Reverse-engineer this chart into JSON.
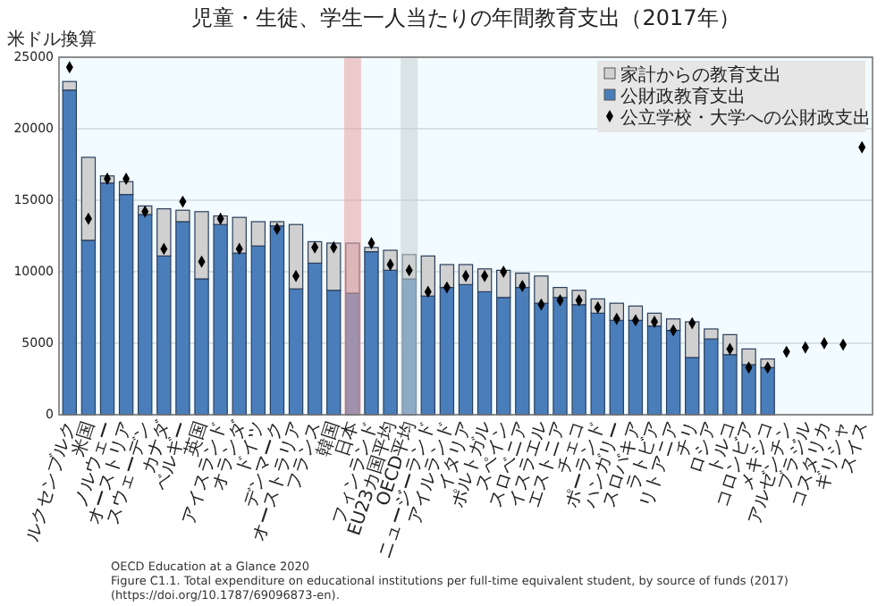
{
  "chart_data": {
    "type": "bar",
    "title": "児童・生徒、学生一人当たりの年間教育支出（2017年）",
    "ylabel": "米ドル換算",
    "categories": [
      "ルクセンブルク",
      "米国",
      "ノルウェー",
      "オーストリア",
      "スウェーデン",
      "カナダ",
      "ベルギー",
      "英国",
      "アイスランド",
      "オランダ",
      "ドイツ",
      "デンマーク",
      "オーストラリア",
      "フランス",
      "韓国",
      "日本",
      "フィンランド",
      "EU23カ国平均",
      "OECD平均",
      "ニュージーランド",
      "アイルランド",
      "イタリア",
      "ポルトガル",
      "スペイン",
      "スロベニア",
      "イスラエル",
      "エストニア",
      "チェコ",
      "ポーランド",
      "ハンガリー",
      "スロバキア",
      "ラトビア",
      "リトアニア",
      "チリ",
      "ロシア",
      "トルコ",
      "コロンビア",
      "メキシコ",
      "アルゼンチン",
      "ブラジル",
      "コスタリカ",
      "ギリシャ",
      "スイス"
    ],
    "stacked": true,
    "series": [
      {
        "name": "公財政教育支出",
        "color": "#4a7ebb",
        "values": [
          22700,
          12200,
          16200,
          15400,
          14000,
          11100,
          13500,
          9500,
          13300,
          11300,
          11800,
          13200,
          8800,
          10600,
          8700,
          8500,
          11400,
          10100,
          9500,
          8300,
          8900,
          9100,
          8600,
          8200,
          8900,
          7800,
          8200,
          7700,
          7100,
          6600,
          6600,
          6200,
          5900,
          4000,
          5300,
          4200,
          3500,
          3300,
          null,
          null,
          null,
          null,
          null
        ]
      },
      {
        "name": "家計からの教育支出",
        "color": "#d0d0d0",
        "values": [
          600,
          5800,
          500,
          900,
          600,
          3300,
          800,
          4700,
          600,
          2500,
          1700,
          300,
          4500,
          1500,
          3300,
          3500,
          300,
          1400,
          1700,
          2800,
          1600,
          1400,
          1600,
          1900,
          1000,
          1900,
          700,
          1000,
          1000,
          1200,
          1000,
          900,
          800,
          2500,
          700,
          1400,
          1100,
          600,
          null,
          null,
          null,
          null,
          null
        ]
      },
      {
        "name": "公立学校・大学への公財政支出",
        "type": "scatter",
        "color": "#000000",
        "marker": "diamond",
        "x": [
          "ルクセンブルク",
          "米国",
          "ノルウェー",
          "オーストリア",
          "スウェーデン",
          "カナダ",
          "ベルギー",
          "英国",
          "アイスランド",
          "オランダ",
          "ドイツ",
          "デンマーク",
          "オーストラリア",
          "フランス",
          "韓国",
          "日本",
          "フィンランド",
          "EU23カ国平均",
          "OECD平均",
          "ニュージーランド",
          "アイルランド",
          "イタリア",
          "ポルトガル",
          "スペイン",
          "スロベニア",
          "イスラエル",
          "エストニア",
          "チェコ",
          "ポーランド",
          "ハンガリー",
          "スロバキア",
          "ラトビア",
          "リトアニア",
          "チリ",
          "ロシア",
          "トルコ",
          "コロンビア",
          "メキシコ",
          "アルゼンチン",
          "ブラジル",
          "コスタリカ",
          "ギリシャ",
          "スイス"
        ],
        "values": [
          24300,
          13700,
          16500,
          16500,
          14200,
          11600,
          14900,
          10700,
          13700,
          11600,
          null,
          13000,
          9700,
          11700,
          11700,
          null,
          12000,
          10500,
          10100,
          8600,
          8900,
          9700,
          9700,
          10000,
          9000,
          7700,
          8000,
          8000,
          7500,
          6700,
          6600,
          6500,
          5900,
          6400,
          null,
          4600,
          3300,
          3300,
          4400,
          4700,
          5000,
          4900,
          18700
        ]
      }
    ],
    "ylim": [
      0,
      25000
    ],
    "yticks": [
      0,
      5000,
      10000,
      15000,
      20000,
      25000
    ],
    "grid": "y",
    "legend": "top right",
    "bands": [
      {
        "axis": "x",
        "from": "日本",
        "to": "日本",
        "color": "#e8a3a3"
      },
      {
        "axis": "x",
        "from": "OECD平均",
        "to": "OECD平均",
        "color": "#c6d0d0"
      }
    ],
    "annotations": [
      "OECD Education at a Glance 2020",
      "Figure C1.1. Total expenditure on educational institutions per full-time equivalent student, by source of funds (2017)",
      "(https://doi.org/10.1787/69096873-en)."
    ]
  }
}
